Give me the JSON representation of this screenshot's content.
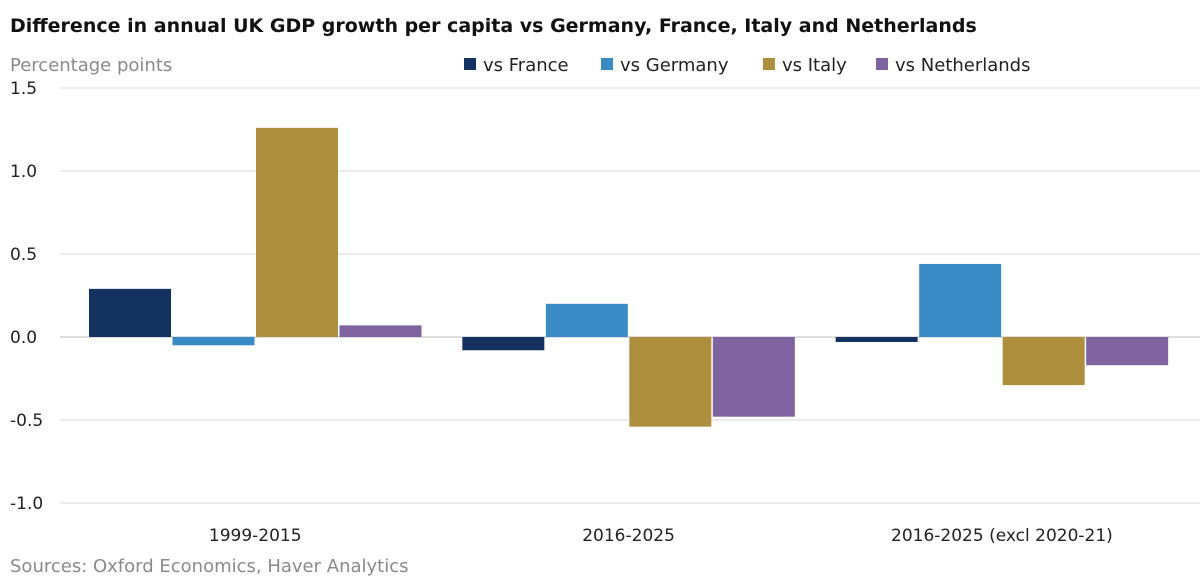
{
  "chart_data": {
    "type": "bar",
    "title": "Difference in annual UK GDP growth per capita vs Germany, France, Italy and Netherlands",
    "ylabel": "Percentage points",
    "ylim": [
      -1.0,
      1.5
    ],
    "yticks": [
      1.5,
      1.0,
      0.5,
      0.0,
      -0.5,
      -1.0
    ],
    "ytick_labels": [
      "1.5",
      "1.0",
      "0.5",
      "0.0",
      "-0.5",
      "-1.0"
    ],
    "categories": [
      "1999-2015",
      "2016-2025",
      "2016-2025 (excl 2020-21)"
    ],
    "series": [
      {
        "name": "vs France",
        "color": "#14325f",
        "values": [
          0.29,
          -0.08,
          -0.03
        ]
      },
      {
        "name": "vs Germany",
        "color": "#3a8ac6",
        "values": [
          -0.05,
          0.2,
          0.44
        ]
      },
      {
        "name": "vs Italy",
        "color": "#ad8f3e",
        "values": [
          1.26,
          -0.54,
          -0.29
        ]
      },
      {
        "name": "vs Netherlands",
        "color": "#7f62a0",
        "values": [
          0.07,
          -0.48,
          -0.17
        ]
      }
    ],
    "legend_position": "top",
    "grid": true,
    "source": "Sources: Oxford Economics, Haver Analytics"
  }
}
